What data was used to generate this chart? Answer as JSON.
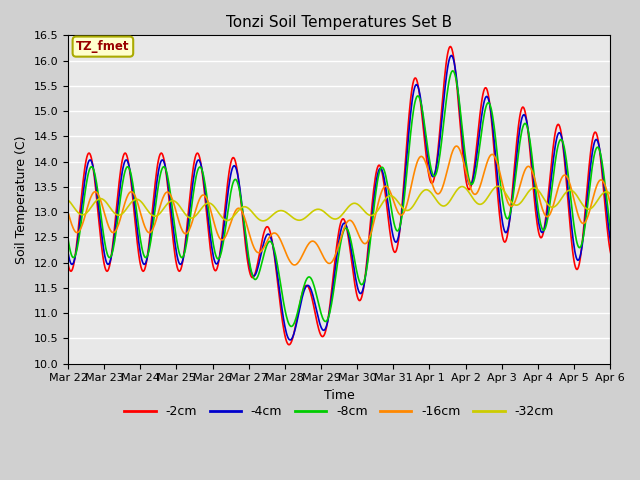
{
  "title": "Tonzi Soil Temperatures Set B",
  "xlabel": "Time",
  "ylabel": "Soil Temperature (C)",
  "ylim": [
    10.0,
    16.5
  ],
  "yticks": [
    10.0,
    10.5,
    11.0,
    11.5,
    12.0,
    12.5,
    13.0,
    13.5,
    14.0,
    14.5,
    15.0,
    15.5,
    16.0,
    16.5
  ],
  "fig_bg_color": "#d0d0d0",
  "plot_bg_color": "#e8e8e8",
  "annotation_label": "TZ_fmet",
  "annotation_bg": "#ffffcc",
  "annotation_border": "#aaaa00",
  "annotation_text_color": "#990000",
  "series_colors": {
    "-2cm": "#ff0000",
    "-4cm": "#0000cc",
    "-8cm": "#00cc00",
    "-16cm": "#ff8800",
    "-32cm": "#cccc00"
  },
  "xtick_labels": [
    "Mar 22",
    "Mar 23",
    "Mar 24",
    "Mar 25",
    "Mar 26",
    "Mar 27",
    "Mar 28",
    "Mar 29",
    "Mar 30",
    "Mar 31",
    "Apr 1",
    "Apr 2",
    "Apr 3",
    "Apr 4",
    "Apr 5",
    "Apr 6"
  ],
  "line_width": 1.2,
  "days": 16
}
